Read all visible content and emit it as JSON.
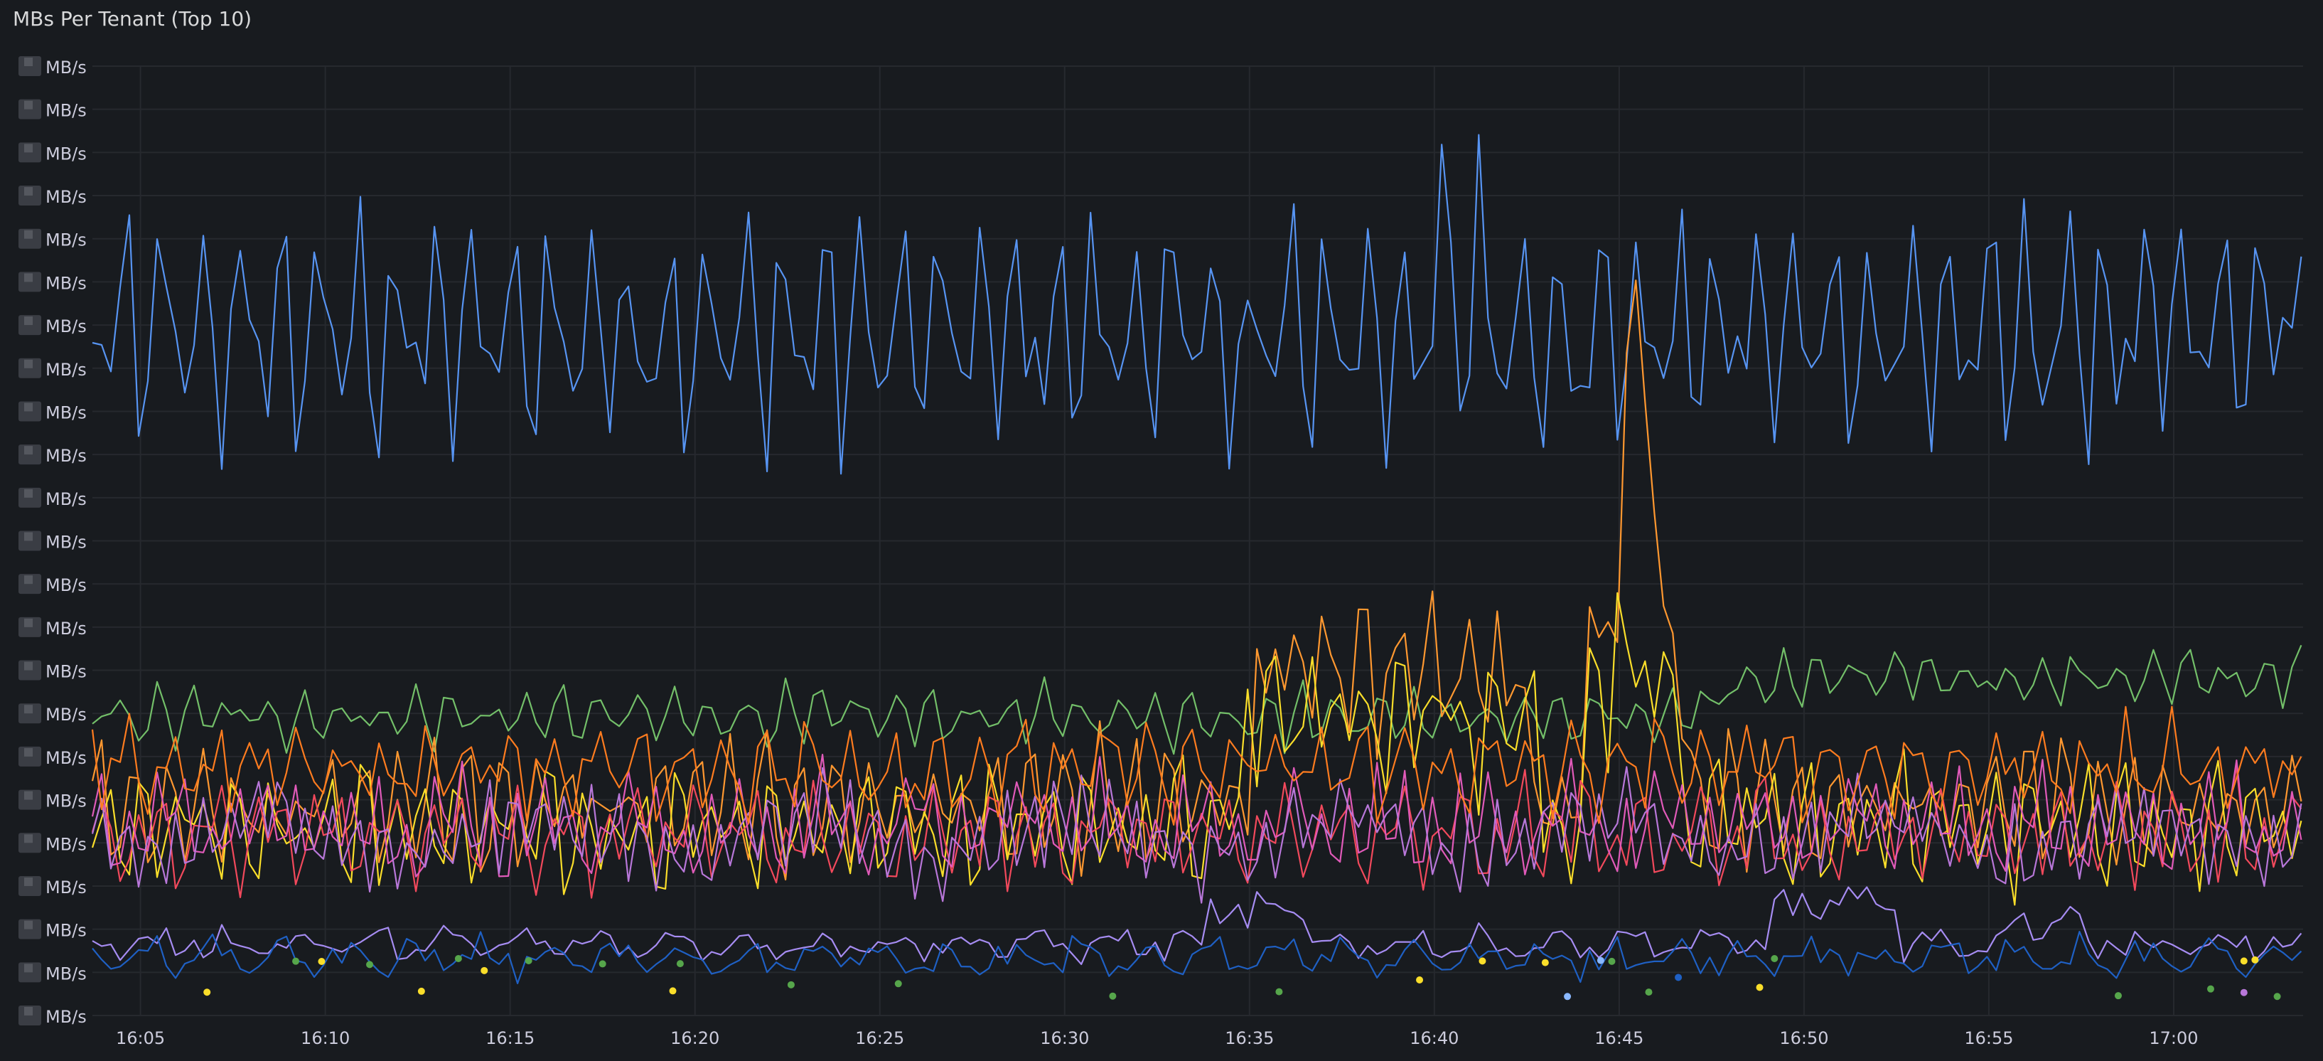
{
  "panel": {
    "title": "MBs Per Tenant (Top 10)"
  },
  "chart_data": {
    "type": "line",
    "title": "MBs Per Tenant (Top 10)",
    "y_unit": "MB/s",
    "y_tick_count": 23,
    "y_tick_label": "MB/s",
    "y_tick_values_obscured": true,
    "x_ticks": [
      "16:05",
      "16:10",
      "16:15",
      "16:20",
      "16:25",
      "16:30",
      "16:35",
      "16:40",
      "16:45",
      "16:50",
      "16:55",
      "17:00"
    ],
    "x_start_minute_offset": -1.3,
    "x_end_minute_offset": 58.5,
    "legend": "none",
    "grid": true,
    "note_scale": "y values expressed as fraction of axis height (0 = bottom, 1 = top); numeric tick values are masked in the original",
    "series": [
      {
        "color": "#5794f2",
        "base": 0.72,
        "amp": 0.085,
        "period": 1.05,
        "noise": 0.03,
        "spikes": [
          [
            30.0,
            -0.08
          ],
          [
            35.2,
            0.14
          ],
          [
            36.3,
            0.11
          ],
          [
            58.0,
            0.07
          ]
        ]
      },
      {
        "color": "#73bf69",
        "base": 0.315,
        "amp": 0.02,
        "period": 1.0,
        "noise": 0.01,
        "ramp": [
          [
            41.5,
            0.0
          ],
          [
            44.0,
            0.04
          ]
        ]
      },
      {
        "color": "#ff9830",
        "base": 0.22,
        "amp": 0.045,
        "period": 0.9,
        "noise": 0.02,
        "bumps": [
          [
            30.0,
            37.5,
            0.17
          ],
          [
            39.2,
            41.8,
            0.22
          ]
        ],
        "peaks": [
          [
            40.5,
            0.42
          ]
        ]
      },
      {
        "color": "#fade2a",
        "base": 0.2,
        "amp": 0.045,
        "period": 0.85,
        "noise": 0.02,
        "bumps": [
          [
            29.8,
            37.8,
            0.14
          ],
          [
            39.0,
            41.5,
            0.2
          ]
        ]
      },
      {
        "color": "#f2495c",
        "base": 0.19,
        "amp": 0.035,
        "period": 0.8,
        "noise": 0.02
      },
      {
        "color": "#e05ab9",
        "base": 0.2,
        "amp": 0.035,
        "period": 0.75,
        "noise": 0.02
      },
      {
        "color": "#b877d9",
        "base": 0.19,
        "amp": 0.035,
        "period": 0.7,
        "noise": 0.02
      },
      {
        "color": "#ff7c1f",
        "base": 0.26,
        "amp": 0.03,
        "period": 1.15,
        "noise": 0.02
      },
      {
        "color": "#a68cf2",
        "base": 0.075,
        "amp": 0.01,
        "period": 2.0,
        "noise": 0.008,
        "bumps": [
          [
            28.8,
            31.5,
            0.04
          ],
          [
            44.0,
            47.5,
            0.05
          ],
          [
            50.5,
            52.5,
            0.03
          ]
        ]
      },
      {
        "color": "#1f60c4",
        "base": 0.06,
        "amp": 0.012,
        "period": 1.8,
        "noise": 0.01
      }
    ],
    "sparse_points": [
      {
        "color": "#fade2a",
        "t": [
          1.8,
          4.9,
          7.6,
          9.3,
          14.4,
          34.6,
          36.3,
          38.0,
          43.8,
          56.9,
          57.2,
          59.4
        ]
      },
      {
        "color": "#56a64b",
        "t": [
          4.2,
          6.2,
          8.6,
          10.5,
          12.5,
          14.6,
          17.6,
          20.5,
          26.3,
          30.8,
          39.8,
          40.8,
          44.2,
          53.5,
          56.0,
          57.8
        ]
      },
      {
        "color": "#8ab8ff",
        "t": [
          38.6,
          39.5
        ]
      },
      {
        "color": "#b877d9",
        "t": [
          56.9
        ]
      },
      {
        "color": "#1f60c4",
        "t": [
          41.6
        ]
      }
    ]
  }
}
